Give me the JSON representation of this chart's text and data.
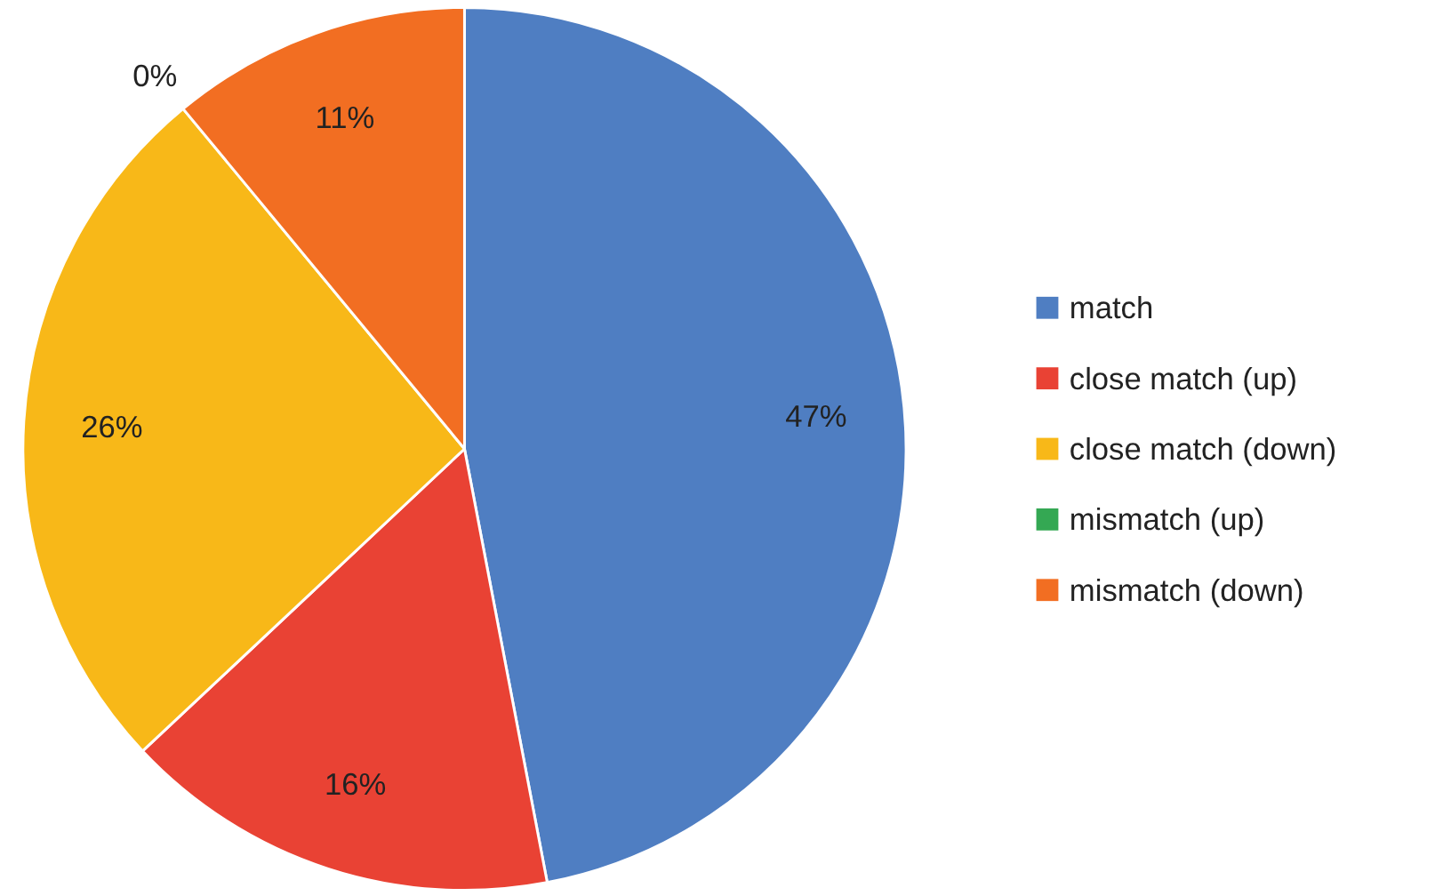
{
  "chart_data": {
    "type": "pie",
    "categories": [
      "match",
      "close match (up)",
      "close match (down)",
      "mismatch (up)",
      "mismatch (down)"
    ],
    "values": [
      47,
      16,
      26,
      0,
      11
    ],
    "colors": [
      "#4f7ec2",
      "#e94234",
      "#f8b818",
      "#34a853",
      "#f26e22"
    ],
    "value_labels": [
      "47%",
      "16%",
      "26%",
      "0%",
      "11%"
    ],
    "legend": "right"
  }
}
